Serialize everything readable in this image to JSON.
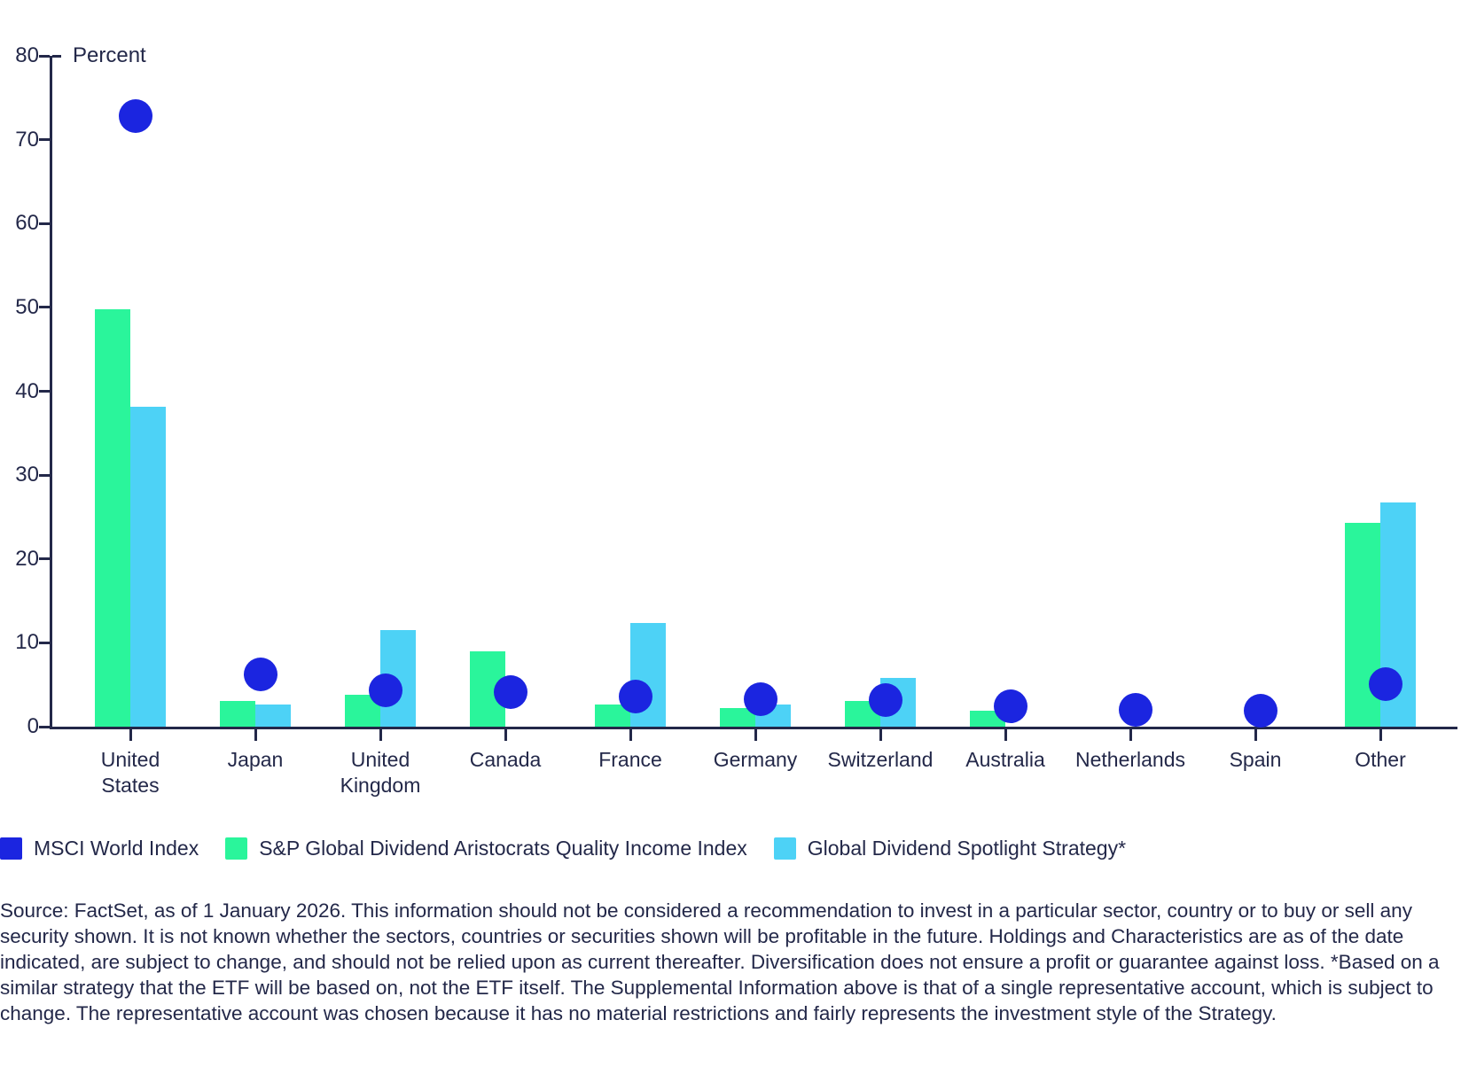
{
  "chart_data": {
    "type": "bar",
    "overlay_marker_series": "MSCI World Index",
    "title": "",
    "ylabel": "Percent",
    "xlabel": "",
    "ylim": [
      0,
      80
    ],
    "ytick_step": 10,
    "grid": false,
    "legend_position": "bottom",
    "categories": [
      "United States",
      "Japan",
      "United Kingdom",
      "Canada",
      "France",
      "Germany",
      "Switzerland",
      "Australia",
      "Netherlands",
      "Spain",
      "Other"
    ],
    "series": [
      {
        "name": "MSCI World Index",
        "render": "dot",
        "color": "#1b25e0",
        "values": [
          72.8,
          6.2,
          4.3,
          4.1,
          3.6,
          3.3,
          3.2,
          2.4,
          2.0,
          1.9,
          5.1
        ]
      },
      {
        "name": "S&P Global Dividend Aristocrats Quality Income Index",
        "render": "bar",
        "color": "#2af59b",
        "values": [
          49.8,
          3.1,
          3.8,
          9.0,
          2.6,
          2.2,
          3.1,
          1.9,
          0,
          0,
          24.3
        ]
      },
      {
        "name": "Global Dividend Spotlight Strategy*",
        "render": "bar",
        "color": "#4dd2f6",
        "values": [
          38.1,
          2.6,
          11.5,
          0,
          12.4,
          2.6,
          5.8,
          0,
          0,
          0,
          26.7
        ]
      }
    ]
  },
  "colors": {
    "axis": "#232849",
    "background": "#ffffff"
  },
  "footnote": "Source: FactSet, as of 1 January 2026. This information should not be considered a recommendation to invest in a particular sector, country or to buy or sell any security shown. It is not known whether the sectors, countries or securities shown will be profitable in the future. Holdings and Characteristics are as of the date indicated, are subject to change, and should not be relied upon as current thereafter. Diversification does not ensure a profit or guarantee against loss. *Based on a similar strategy that the ETF will be based on, not the ETF itself. The Supplemental Information above is that of a single representative account, which is subject to change. The representative account was chosen because it has no material restrictions and fairly represents the investment style of the Strategy."
}
